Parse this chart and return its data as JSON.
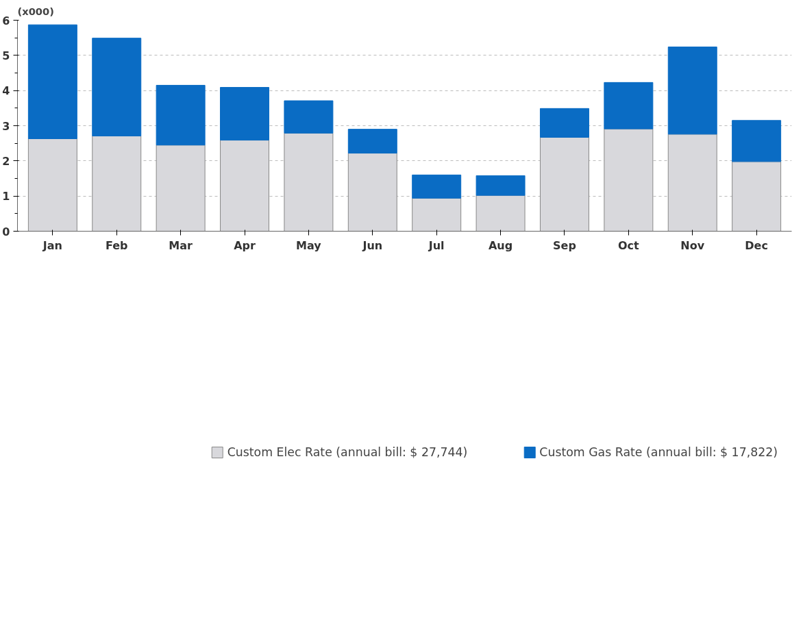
{
  "chart_data": {
    "type": "bar",
    "stacked": true,
    "ylabel": "(x000)",
    "categories": [
      "Jan",
      "Feb",
      "Mar",
      "Apr",
      "May",
      "Jun",
      "Jul",
      "Aug",
      "Sep",
      "Oct",
      "Nov",
      "Dec"
    ],
    "series": [
      {
        "name": "Custom Elec Rate (annual bill: $ 27,744)",
        "color": "#d8d8dc",
        "values": [
          2.63,
          2.71,
          2.45,
          2.59,
          2.79,
          2.22,
          0.94,
          1.02,
          2.67,
          2.91,
          2.76,
          1.98
        ]
      },
      {
        "name": "Custom Gas Rate (annual bill: $ 17,822)",
        "color": "#0a6cc4",
        "values": [
          3.24,
          2.78,
          1.7,
          1.5,
          0.92,
          0.68,
          0.66,
          0.56,
          0.82,
          1.32,
          2.48,
          1.17
        ]
      }
    ],
    "ylim": [
      0,
      6
    ],
    "yticks": [
      0,
      1,
      2,
      3,
      4,
      5,
      6
    ],
    "grid": "y",
    "legend": "bottom"
  }
}
